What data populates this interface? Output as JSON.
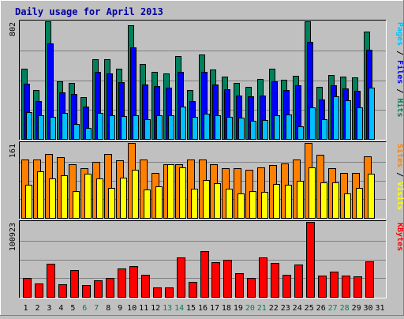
{
  "chart_data": {
    "type": "bar",
    "title": "Daily usage for April 2013",
    "days": [
      "1",
      "2",
      "3",
      "4",
      "5",
      "6",
      "7",
      "8",
      "9",
      "10",
      "11",
      "12",
      "13",
      "14",
      "15",
      "16",
      "17",
      "18",
      "19",
      "20",
      "21",
      "22",
      "23",
      "24",
      "25",
      "26",
      "27",
      "28",
      "29",
      "30",
      "31"
    ],
    "weekend_days": [
      "6",
      "7",
      "13",
      "14",
      "20",
      "21",
      "27",
      "28"
    ],
    "weekend_color": "#00805c",
    "weekday_color": "#000000",
    "panels": [
      {
        "name": "pages-files-hits",
        "ymax": 802,
        "ymax_label": "802",
        "legend": [
          {
            "text": "Pages",
            "color": "#00c0ff"
          },
          {
            "text": " / ",
            "color": "#000000"
          },
          {
            "text": "Files",
            "color": "#0000ff"
          },
          {
            "text": " / ",
            "color": "#000000"
          },
          {
            "text": "Hits",
            "color": "#00805c"
          }
        ],
        "series": [
          {
            "name": "Hits",
            "color": "#00805c",
            "values": [
              478,
              332,
              802,
              395,
              384,
              287,
              542,
              542,
              479,
              775,
              514,
              459,
              448,
              566,
              332,
              577,
              471,
              424,
              382,
              354,
              409,
              477,
              404,
              428,
              802,
              353,
              437,
              423,
              422,
              732,
              0
            ]
          },
          {
            "name": "Files",
            "color": "#0000ff",
            "values": [
              378,
              260,
              653,
              319,
              306,
              221,
              455,
              446,
              387,
              624,
              370,
              360,
              351,
              455,
              256,
              458,
              371,
              339,
              294,
              290,
              296,
              391,
              334,
              368,
              660,
              270,
              366,
              347,
              330,
              609,
              0
            ]
          },
          {
            "name": "Pages",
            "color": "#00c0ff",
            "values": [
              185,
              159,
              150,
              176,
              100,
              74,
              176,
              159,
              155,
              162,
              136,
              159,
              159,
              223,
              150,
              172,
              164,
              151,
              144,
              125,
              129,
              163,
              168,
              87,
              217,
              134,
              288,
              265,
              216,
              351,
              0
            ]
          }
        ]
      },
      {
        "name": "visits-sites",
        "ymax": 161,
        "ymax_label": "161",
        "legend": [
          {
            "text": "Sites",
            "color": "#ff8000"
          },
          {
            "text": " / ",
            "color": "#000000"
          },
          {
            "text": "Visits",
            "color": "#ffff00"
          }
        ],
        "series": [
          {
            "name": "Visits",
            "color": "#ff8000",
            "values": [
              126,
              126,
              138,
              130,
              115,
              107,
              121,
              138,
              123,
              161,
              126,
              97,
              115,
              116,
              126,
              125,
              115,
              106,
              107,
              104,
              108,
              114,
              117,
              125,
              161,
              135,
              107,
              96,
              96,
              133,
              0
            ]
          },
          {
            "name": "Sites",
            "color": "#ffff00",
            "values": [
              72,
              100,
              84,
              91,
              57,
              95,
              84,
              65,
              86,
              104,
              61,
              68,
              115,
              109,
              63,
              82,
              74,
              62,
              52,
              58,
              56,
              73,
              71,
              80,
              108,
              77,
              76,
              52,
              65,
              95,
              0
            ]
          }
        ]
      },
      {
        "name": "kbytes",
        "ymax": 100923,
        "ymax_label": "100923",
        "legend": [
          {
            "text": "KBytes",
            "color": "#ff0000"
          }
        ],
        "series": [
          {
            "name": "KBytes",
            "color": "#ff0000",
            "values": [
              25306,
              18152,
              44101,
              17049,
              35808,
              15923,
              22049,
              25033,
              37740,
              40914,
              30000,
              12389,
              12389,
              52930,
              20055,
              62071,
              47024,
              50000,
              32118,
              25059,
              52930,
              45933,
              30000,
              43960,
              100923,
              29072,
              33989,
              29072,
              27923,
              47967,
              0
            ]
          }
        ]
      }
    ]
  }
}
